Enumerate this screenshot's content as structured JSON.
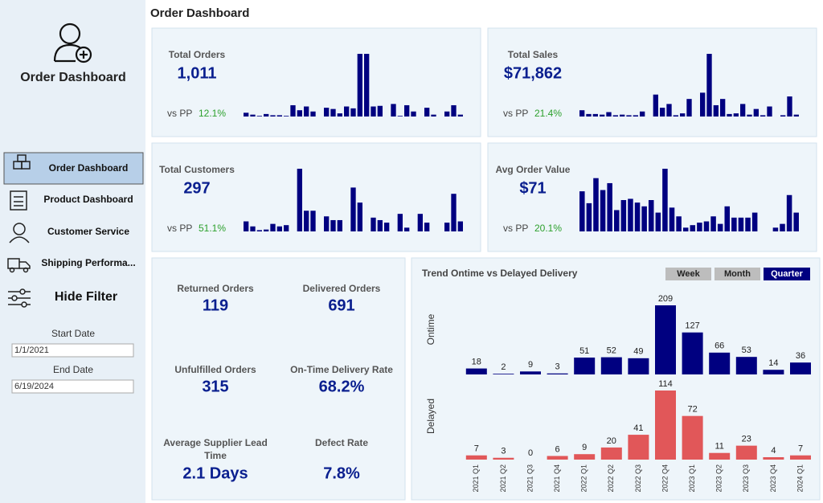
{
  "header": {
    "title": "Order Dashboard"
  },
  "sidebar": {
    "title": "Order Dashboard",
    "nav": [
      "Order Dashboard",
      "Product Dashboard",
      "Customer Service",
      "Shipping Performa..."
    ],
    "active_nav": 0,
    "hide_filter": "Hide Filter",
    "filters": {
      "start_label": "Start Date",
      "start_value": "1/1/2021",
      "end_label": "End Date",
      "end_value": "6/19/2024"
    }
  },
  "kpi_cards": [
    {
      "label": "Total Orders",
      "value": "1,011",
      "compare_label": "vs PP",
      "change": "12.1%",
      "trend": [
        6,
        3,
        1,
        4,
        2,
        2,
        1,
        18,
        10,
        16,
        8,
        0,
        14,
        12,
        5,
        16,
        13,
        100,
        100,
        16,
        17,
        0,
        20,
        1,
        18,
        8,
        0,
        14,
        3,
        0,
        8,
        18,
        3
      ]
    },
    {
      "label": "Total Sales",
      "value": "$71,862",
      "compare_label": "vs PP",
      "change": "21.4%",
      "trend": [
        10,
        4,
        4,
        3,
        7,
        2,
        3,
        2,
        2,
        8,
        0,
        35,
        14,
        20,
        2,
        5,
        28,
        0,
        38,
        100,
        18,
        28,
        4,
        5,
        20,
        3,
        12,
        2,
        16,
        0,
        2,
        32,
        3
      ]
    },
    {
      "label": "Total Customers",
      "value": "297",
      "compare_label": "vs PP",
      "change": "51.1%",
      "trend": [
        16,
        8,
        2,
        3,
        12,
        8,
        10,
        0,
        100,
        33,
        33,
        0,
        24,
        18,
        18,
        0,
        70,
        46,
        0,
        22,
        18,
        14,
        0,
        28,
        6,
        0,
        28,
        14,
        0,
        0,
        14,
        60,
        16
      ]
    },
    {
      "label": "Avg Order Value",
      "value": "$71",
      "compare_label": "vs PP",
      "change": "20.1%",
      "trend": [
        64,
        45,
        85,
        66,
        77,
        34,
        50,
        52,
        46,
        40,
        50,
        30,
        100,
        38,
        24,
        6,
        10,
        14,
        16,
        24,
        12,
        40,
        22,
        22,
        22,
        30,
        0,
        0,
        6,
        12,
        58,
        30
      ]
    }
  ],
  "metrics": [
    {
      "label": "Returned Orders",
      "value": "119"
    },
    {
      "label": "Delivered Orders",
      "value": "691"
    },
    {
      "label": "Unfulfilled Orders",
      "value": "315"
    },
    {
      "label": "On-Time Delivery Rate",
      "value": "68.2%"
    },
    {
      "label": "Average Supplier Lead Time",
      "value": "2.1 Days"
    },
    {
      "label": "Defect Rate",
      "value": "7.8%"
    }
  ],
  "chart_data": {
    "type": "bar",
    "title": "Trend Ontime vs Delayed Delivery",
    "buttons": [
      "Week",
      "Month",
      "Quarter"
    ],
    "active_button": 2,
    "categories": [
      "2021 Q1",
      "2021 Q2",
      "2021 Q3",
      "2021 Q4",
      "2022 Q1",
      "2022 Q2",
      "2022 Q3",
      "2022 Q4",
      "2023 Q1",
      "2023 Q2",
      "2023 Q3",
      "2023 Q4",
      "2024 Q1"
    ],
    "series": [
      {
        "name": "Ontime",
        "color": "#000080",
        "values": [
          18,
          2,
          9,
          3,
          51,
          52,
          49,
          209,
          127,
          66,
          53,
          14,
          36
        ]
      },
      {
        "name": "Delayed",
        "color": "#e15759",
        "values": [
          7,
          3,
          0,
          6,
          9,
          20,
          41,
          114,
          72,
          11,
          23,
          4,
          7
        ]
      }
    ]
  }
}
